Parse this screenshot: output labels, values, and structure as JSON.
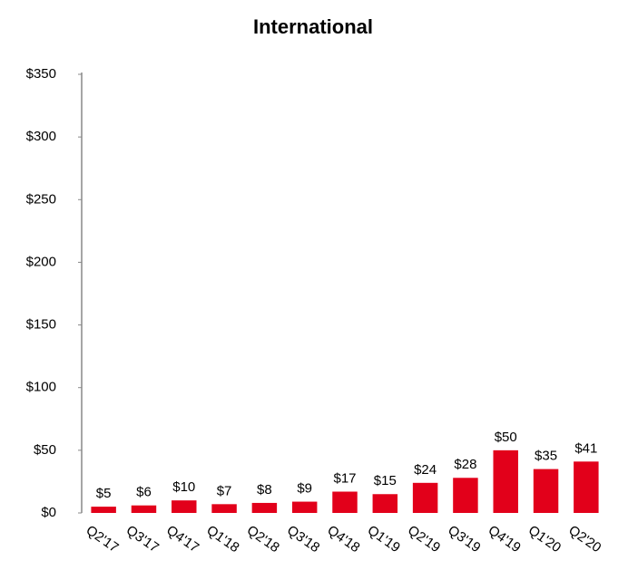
{
  "chart_data": {
    "type": "bar",
    "title": "International",
    "categories": [
      "Q2'17",
      "Q3'17",
      "Q4'17",
      "Q1'18",
      "Q2'18",
      "Q3'18",
      "Q4'18",
      "Q1'19",
      "Q2'19",
      "Q3'19",
      "Q4'19",
      "Q1'20",
      "Q2'20"
    ],
    "values": [
      5,
      6,
      10,
      7,
      8,
      9,
      17,
      15,
      24,
      28,
      50,
      35,
      41
    ],
    "value_labels": [
      "$5",
      "$6",
      "$10",
      "$7",
      "$8",
      "$9",
      "$17",
      "$15",
      "$24",
      "$28",
      "$50",
      "$35",
      "$41"
    ],
    "color": "#e2001a",
    "ylim": [
      0,
      350
    ],
    "yticks": [
      {
        "value": 0,
        "label": "$0"
      },
      {
        "value": 50,
        "label": "$50"
      },
      {
        "value": 100,
        "label": "$100"
      },
      {
        "value": 150,
        "label": "$150"
      },
      {
        "value": 200,
        "label": "$200"
      },
      {
        "value": 250,
        "label": "$250"
      },
      {
        "value": 300,
        "label": "$300"
      },
      {
        "value": 350,
        "label": "$350"
      }
    ],
    "grid": false
  }
}
